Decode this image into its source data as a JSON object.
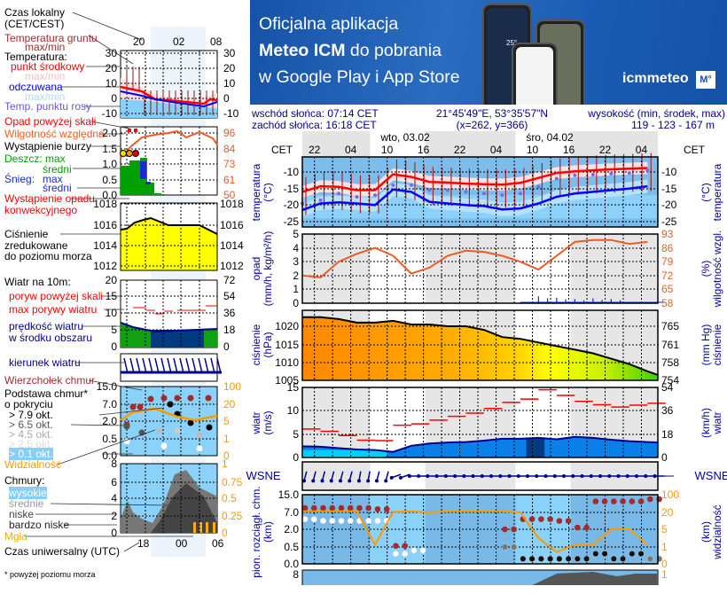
{
  "banner": {
    "line1": "Oficjalna aplikacja",
    "line2_bold": "Meteo ICM",
    "line2_rest": " do pobrania",
    "line3": "w Google Play i App Store",
    "logo_text": "icmmeteo",
    "logo_badge": "M°",
    "phone_temp": "25°"
  },
  "info": {
    "sunrise": "wschód słońca: 07:14 CET",
    "sunset": "zachód słońca: 16:18 CET",
    "coords": "21°45'49\"E, 53°35'57\"N",
    "grid": "(x=262,  y=366)",
    "elev_label": "wysokość (min, środek, max)",
    "elev_values": "119 - 123 - 167 m"
  },
  "time_axis": {
    "tz_left": "CET",
    "tz_right": "CET",
    "days": [
      "wto, 03.02",
      "śro, 04.02"
    ],
    "hour_labels": [
      "22",
      "04",
      "10",
      "16",
      "22",
      "04",
      "10",
      "16",
      "22",
      "04"
    ]
  },
  "legend": {
    "czas_lokalny": "Czas lokalny",
    "cet_cest": "(CET/CEST)",
    "top_hours": [
      "20",
      "02",
      "08"
    ],
    "temp_gruntu": "Temperatura gruntu",
    "temp_gruntu_mm": "max/min",
    "temperatura": "Temperatura:",
    "punkt_srodkowy": "punkt środkowy",
    "temp_maxmin": "max/min",
    "odczuwana": "odczuwana",
    "odcz_maxmin": "max/min",
    "punkt_rosy": "Temp. punktu rosy",
    "temp_ticks": [
      "30",
      "20",
      "10",
      "0",
      "-10"
    ],
    "opad_powyzej": "Opad powyżej skali",
    "wilgotnosc": "Wilgotność względna",
    "burza": "Wystąpienie burzy",
    "deszcz_max": "Deszcz: max",
    "deszcz_sredni": "średni",
    "snieg": "Śnieg:",
    "snieg_max": "max",
    "snieg_sredni": "średni",
    "opad_konw1": "Wystąpienie opadu",
    "opad_konw2": "konwekcyjnego",
    "opad_ticks": [
      "2.0",
      "1.5",
      "1.0",
      "0.5",
      "0.0"
    ],
    "rh_ticks": [
      "96",
      "84",
      "73",
      "61",
      "50"
    ],
    "cisn1": "Ciśnienie",
    "cisn2": "zredukowane",
    "cisn3": "do poziomu morza",
    "press_ticks": [
      "1018",
      "1016",
      "1014",
      "1012"
    ],
    "wiatr_10m": "Wiatr na 10m:",
    "poryw_powyzej": "poryw powyżej skali",
    "max_porywy": "max porywy wiatru",
    "predkosc1": "prędkość wiatru",
    "predkosc2": "w środku obszaru",
    "wind_ticks": [
      "20",
      "15",
      "10",
      "5",
      "0"
    ],
    "wind_kmh_ticks": [
      "72",
      "54",
      "36",
      "18",
      "0"
    ],
    "kierunek": "kierunek wiatru",
    "wierzcholek": "Wierzchołek chmur",
    "podstawa1": "Podstawa chmur*",
    "podstawa2": "o pokryciu",
    "okt79": "> 7.9 okt.",
    "okt65": "> 6.5 okt.",
    "okt45": "> 4.5 okt.",
    "okt25": "> 2.5 okt.",
    "okt01": "> 0.1 okt.",
    "cloud_ticks": [
      "15.0",
      "7.0",
      "2.0",
      "0.5",
      "0.0"
    ],
    "vis_ticks": [
      "100",
      "20",
      "5",
      "1",
      "0"
    ],
    "widzialnosc": "Widzialność",
    "chmury": "Chmury:",
    "wysokie": "wysokie",
    "srednie": "średnie",
    "niske": "niske",
    "bardzo_niske": "bardzo niske",
    "mgla": "Mgła",
    "cl_ticks": [
      "8",
      "6",
      "4",
      "2",
      "0"
    ],
    "cl_right_ticks": [
      "1",
      "0.75",
      "0.5",
      "0.25",
      "0"
    ],
    "utc_hours": [
      "18",
      "00",
      "06"
    ],
    "utc": "Czas uniwersalny (UTC)",
    "footnote": "* powyżej poziomu morza"
  },
  "axes": {
    "temp_left": [
      "temperatura",
      "(°C)"
    ],
    "temp_right": [
      "(°C)",
      "temperatura"
    ],
    "opad_left": [
      "opad",
      "(mm/h, kg/m²/h)"
    ],
    "rh_right": [
      "(%)",
      "wilgotność wzgl."
    ],
    "press_left": [
      "ciśnienie",
      "(hPa)"
    ],
    "press_right": [
      "(mm Hg)",
      "ciśnienie"
    ],
    "wind_left": [
      "wiatr",
      "(m/s)"
    ],
    "wind_right": [
      "(km/h)",
      "wiatr"
    ],
    "compass": "WSNE",
    "cloud_left": [
      "pion. rozciągł. chm.",
      "(km)"
    ],
    "cloud_right": [
      "(km)",
      "widzialność"
    ],
    "next_left_tick": "8",
    "next_right_tick": "1"
  },
  "colors": {
    "temperature": "#ff0000",
    "felt_temperature": "#0000ff",
    "dew_point": "#7b68ee",
    "ground_temp": "#b22222",
    "humidity": "#ee5a24",
    "precipitation": "#0033cc",
    "pressure_line": "#000000",
    "wind_speed": "#00008b",
    "wind_gust": "#ff0000",
    "visibility": "#ff9900",
    "cloud_top": "#a52a2a"
  },
  "chart_data": {
    "type": "line",
    "x": [
      "02.02 20:00",
      "02.02 23:00",
      "03.02 02:00",
      "03.02 05:00",
      "03.02 08:00",
      "03.02 11:00",
      "03.02 14:00",
      "03.02 17:00",
      "03.02 20:00",
      "03.02 23:00",
      "04.02 02:00",
      "04.02 05:00",
      "04.02 08:00",
      "04.02 11:00",
      "04.02 14:00",
      "04.02 17:00",
      "04.02 20:00",
      "04.02 23:00",
      "05.02 02:00",
      "05.02 05:00"
    ],
    "panels": [
      {
        "name": "temperature",
        "yticks": [
          "-10",
          "-15",
          "-20",
          "-25"
        ],
        "yticks_right": [
          "-10",
          "-15",
          "-20",
          "-25"
        ],
        "ylim": [
          -26.7,
          -5.5
        ],
        "series": [
          {
            "key": "temperature",
            "values": [
              -16,
              -14.3,
              -14.5,
              -15.5,
              -15.5,
              -10.7,
              -11.5,
              -13,
              -13.2,
              -13.5,
              -13.7,
              -13.8,
              -13.3,
              -11.8,
              -10.3,
              -9.8,
              -9.5,
              -9.2,
              -9,
              -8.8
            ]
          },
          {
            "key": "felt_temperature",
            "values": [
              -21.5,
              -19.5,
              -19.2,
              -19.5,
              -20,
              -15.3,
              -16,
              -19,
              -19.5,
              -20,
              -20.3,
              -21.3,
              -21,
              -19.5,
              -17.5,
              -16.5,
              -16,
              -15.5,
              -15,
              -14.3
            ]
          },
          {
            "key": "dew_point",
            "values": [
              -19.5,
              -18.5,
              -16.5,
              -17.5,
              -17,
              -14,
              -14,
              -15.5,
              -15.5,
              -16,
              -16.5,
              -17,
              -16.5,
              -14.5,
              -12,
              -11,
              -10.8,
              -10.5,
              -10.3,
              -9.5
            ]
          }
        ]
      },
      {
        "name": "precipitation-humidity",
        "yticks": [
          "5",
          "4",
          "3",
          "2",
          "1",
          "0"
        ],
        "yticks_right": [
          "93",
          "86",
          "79",
          "72",
          "65",
          "58"
        ],
        "ylim": [
          0,
          5
        ],
        "ylim_right": [
          58,
          93
        ],
        "series": [
          {
            "key": "humidity",
            "values": [
              72,
              71,
              79,
              83,
              86,
              82,
              73,
              76,
              82,
              84.6,
              84,
              82,
              79,
              75,
              82,
              89,
              90,
              90,
              88,
              89
            ]
          },
          {
            "key": "precipitation",
            "values": [
              0,
              0,
              0,
              0,
              0,
              0,
              0,
              0,
              0,
              0,
              0,
              0,
              0.05,
              0.5,
              0.4,
              0.3,
              0.35,
              0.3,
              0.02,
              0.02
            ]
          }
        ]
      },
      {
        "name": "pressure",
        "yticks": [
          "1020",
          "1015",
          "1010",
          "1005"
        ],
        "yticks_right": [
          "765",
          "761",
          "758",
          "754"
        ],
        "ylim": [
          1005,
          1024.5
        ],
        "series": [
          {
            "key": "pressure",
            "values": [
              1022.5,
              1022.5,
              1022,
              1021,
              1021,
              1021.5,
              1020.5,
              1020.5,
              1020,
              1020,
              1019,
              1017,
              1016.5,
              1015.5,
              1014.5,
              1013.5,
              1012.5,
              1011,
              1009.5,
              1007.5
            ]
          }
        ]
      },
      {
        "name": "wind",
        "yticks": [
          "15",
          "10",
          "5",
          "0"
        ],
        "yticks_right": [
          "54",
          "36",
          "18",
          "0"
        ],
        "ylim": [
          0,
          15
        ],
        "series": [
          {
            "key": "wind_speed",
            "values": [
              2.4,
              2.3,
              2,
              1.7,
              1.6,
              1.2,
              2.5,
              3,
              3.2,
              3.3,
              3.6,
              4,
              4,
              4.2,
              3.9,
              4.4,
              4.2,
              3.8,
              3.5,
              3.3
            ]
          },
          {
            "key": "wind_gust",
            "values": [
              6.1,
              5.6,
              4.7,
              3.7,
              3.6,
              6.9,
              7.2,
              8,
              8.8,
              9.5,
              10.5,
              11.8,
              12.5,
              14.5,
              13.3,
              12,
              11.3,
              10.8,
              11.2,
              11.6
            ]
          }
        ]
      },
      {
        "name": "wind-direction",
        "series": [
          {
            "key": "wind_direction_deg",
            "values": [
              15,
              15,
              15,
              10,
              15,
              70,
              90,
              90,
              90,
              90,
              90,
              90,
              90,
              90,
              90,
              90,
              90,
              90,
              90,
              90
            ]
          }
        ]
      },
      {
        "name": "clouds-visibility",
        "yticks": [
          "15.0",
          "7.0",
          "2.0",
          "0.5",
          "0.0"
        ],
        "yticks_right": [
          "100",
          "20",
          "5",
          "1",
          "0"
        ],
        "scale": "nonlinear",
        "series": [
          {
            "key": "visibility",
            "values": [
              25,
              25,
              25,
              25,
              1.5,
              22,
              25,
              20,
              25,
              25,
              25,
              25,
              20,
              3,
              0.7,
              1.5,
              1.5,
              5,
              5,
              1.5
            ]
          },
          {
            "key": "cloud_top",
            "values": [
              9,
              9,
              9,
              9,
              8.5,
              0.6,
              null,
              null,
              null,
              null,
              null,
              2,
              5,
              5,
              4.5,
              2.5,
              12,
              12,
              12,
              13
            ]
          },
          {
            "key": "cloud_base",
            "values": [
              5,
              4.5,
              4.5,
              4.5,
              4.5,
              0.3,
              0.4,
              null,
              null,
              null,
              null,
              0.5,
              0.15,
              0.15,
              0.15,
              0.15,
              0.3,
              0.15,
              0.3,
              0.15
            ]
          }
        ]
      }
    ]
  }
}
